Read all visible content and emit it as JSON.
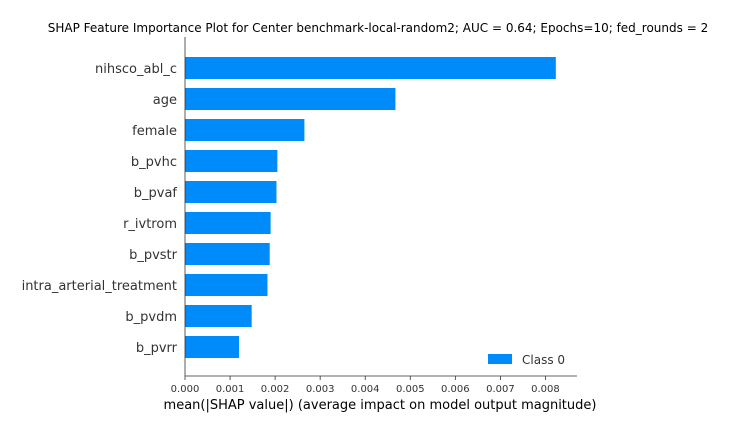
{
  "chart_data": {
    "type": "bar",
    "orientation": "horizontal",
    "title": "SHAP Feature Importance Plot for Center benchmark-local-random2; AUC = 0.64; Epochs=10; fed_rounds = 2",
    "xlabel": "mean(|SHAP value|) (average impact on model output magnitude)",
    "ylabel": "",
    "xlim": [
      0,
      0.0087
    ],
    "xticks": [
      "0.000",
      "0.001",
      "0.002",
      "0.003",
      "0.004",
      "0.005",
      "0.006",
      "0.007",
      "0.008"
    ],
    "categories": [
      "nihsco_abl_c",
      "age",
      "female",
      "b_pvhc",
      "b_pvaf",
      "r_ivtrom",
      "b_pvstr",
      "intra_arterial_treatment",
      "b_pvdm",
      "b_pvrr"
    ],
    "series": [
      {
        "name": "Class 0",
        "color": "#008bfb",
        "values": [
          0.00823,
          0.00467,
          0.00265,
          0.00205,
          0.00203,
          0.0019,
          0.00188,
          0.00183,
          0.00148,
          0.0012
        ]
      }
    ],
    "legend": {
      "position": "bottom-right",
      "label": "Class 0"
    },
    "grid": false
  }
}
